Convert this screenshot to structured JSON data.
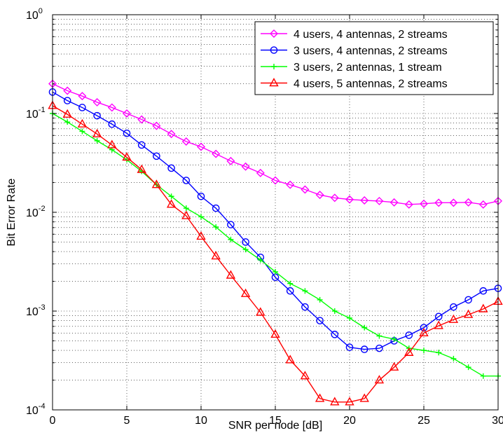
{
  "chart_data": {
    "type": "line",
    "title": "",
    "xlabel": "SNR per node [dB]",
    "ylabel": "Bit Error Rate",
    "xlim": [
      0,
      30
    ],
    "ylim": [
      0.0001,
      1
    ],
    "yscale": "log",
    "grid": true,
    "legend_position": "top-right",
    "x_ticks": [
      0,
      5,
      10,
      15,
      20,
      25,
      30
    ],
    "y_ticks": [
      {
        "base": "10",
        "exp": "-4"
      },
      {
        "base": "10",
        "exp": "-3"
      },
      {
        "base": "10",
        "exp": "-2"
      },
      {
        "base": "10",
        "exp": "-1"
      },
      {
        "base": "10",
        "exp": "0"
      }
    ],
    "x": [
      0,
      1,
      2,
      3,
      4,
      5,
      6,
      7,
      8,
      9,
      10,
      11,
      12,
      13,
      14,
      15,
      16,
      17,
      18,
      19,
      20,
      21,
      22,
      23,
      24,
      25,
      26,
      27,
      28,
      29,
      30
    ],
    "series": [
      {
        "name": "4 users, 4 antennas, 2 streams",
        "color": "#ff00ff",
        "marker": "diamond",
        "values": [
          0.2,
          0.17,
          0.15,
          0.13,
          0.115,
          0.1,
          0.087,
          0.075,
          0.062,
          0.052,
          0.046,
          0.039,
          0.033,
          0.029,
          0.025,
          0.021,
          0.019,
          0.017,
          0.015,
          0.014,
          0.0135,
          0.0132,
          0.013,
          0.0126,
          0.012,
          0.0122,
          0.0125,
          0.0125,
          0.0126,
          0.012,
          0.013
        ]
      },
      {
        "name": "3 users, 4 antennas, 2 streams",
        "color": "#0000ff",
        "marker": "circle",
        "values": [
          0.165,
          0.135,
          0.115,
          0.095,
          0.078,
          0.063,
          0.048,
          0.037,
          0.028,
          0.021,
          0.0145,
          0.011,
          0.0075,
          0.005,
          0.0035,
          0.0022,
          0.0016,
          0.0011,
          0.0008,
          0.00058,
          0.00043,
          0.00041,
          0.00042,
          0.0005,
          0.00057,
          0.00068,
          0.00088,
          0.0011,
          0.0013,
          0.0016,
          0.0017
        ]
      },
      {
        "name": "3 users, 2 antennas, 1 stream",
        "color": "#00ff00",
        "marker": "plus",
        "values": [
          0.1,
          0.082,
          0.066,
          0.053,
          0.043,
          0.034,
          0.026,
          0.019,
          0.0145,
          0.011,
          0.009,
          0.0071,
          0.0053,
          0.0042,
          0.0033,
          0.0025,
          0.0019,
          0.0016,
          0.0013,
          0.001,
          0.00085,
          0.00068,
          0.00056,
          0.00052,
          0.00042,
          0.0004,
          0.00038,
          0.00033,
          0.00027,
          0.00022,
          0.00022
        ]
      },
      {
        "name": "4 users, 5 antennas, 2 streams",
        "color": "#ff0000",
        "marker": "triangle",
        "values": [
          0.12,
          0.098,
          0.078,
          0.062,
          0.048,
          0.036,
          0.027,
          0.019,
          0.012,
          0.0092,
          0.0057,
          0.0036,
          0.0023,
          0.0015,
          0.00097,
          0.00058,
          0.00032,
          0.00022,
          0.00013,
          0.00012,
          0.00012,
          0.00013,
          0.0002,
          0.00027,
          0.00038,
          0.0006,
          0.00071,
          0.00082,
          0.00092,
          0.00105,
          0.00125
        ]
      }
    ]
  }
}
